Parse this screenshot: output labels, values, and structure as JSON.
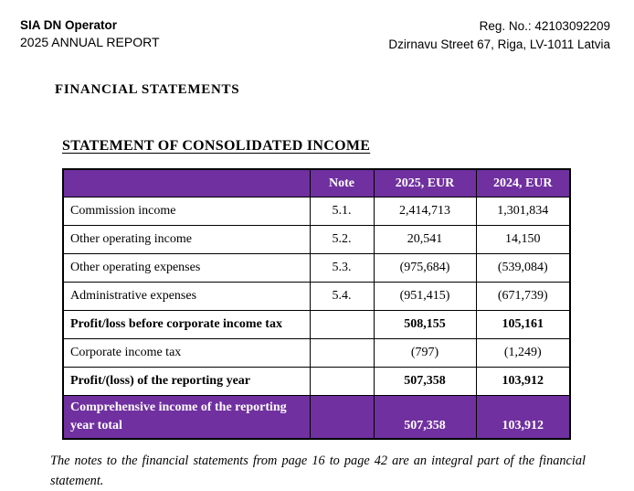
{
  "header": {
    "company": "SIA DN Operator",
    "report": "2025 ANNUAL REPORT",
    "reg_no": "Reg. No.: 42103092209",
    "address": "Dzirnavu Street 67, Riga, LV-1011 Latvia"
  },
  "section_title": "FINANCIAL STATEMENTS",
  "statement_title": "STATEMENT OF CONSOLIDATED INCOME",
  "table": {
    "columns": [
      "",
      "Note",
      "2025, EUR",
      "2024, EUR"
    ],
    "rows": [
      {
        "label": "Commission income",
        "note": "5.1.",
        "y2025": "2,414,713",
        "y2024": "1,301,834",
        "bold": false,
        "highlight": false
      },
      {
        "label": "Other operating income",
        "note": "5.2.",
        "y2025": "20,541",
        "y2024": "14,150",
        "bold": false,
        "highlight": false
      },
      {
        "label": "Other operating expenses",
        "note": "5.3.",
        "y2025": "(975,684)",
        "y2024": "(539,084)",
        "bold": false,
        "highlight": false
      },
      {
        "label": "Administrative expenses",
        "note": "5.4.",
        "y2025": "(951,415)",
        "y2024": "(671,739)",
        "bold": false,
        "highlight": false
      },
      {
        "label": "Profit/loss before corporate income tax",
        "note": "",
        "y2025": "508,155",
        "y2024": "105,161",
        "bold": true,
        "highlight": false
      },
      {
        "label": "Corporate income tax",
        "note": "",
        "y2025": "(797)",
        "y2024": "(1,249)",
        "bold": false,
        "highlight": false
      },
      {
        "label": "Profit/(loss) of the reporting year",
        "note": "",
        "y2025": "507,358",
        "y2024": "103,912",
        "bold": true,
        "highlight": false
      },
      {
        "label": "Comprehensive income of the reporting year total",
        "note": "",
        "y2025": "507,358",
        "y2024": "103,912",
        "bold": true,
        "highlight": true
      }
    ]
  },
  "footer_note": "The notes to the financial statements from page 16 to page 42 are an integral part of the financial statement.",
  "colors": {
    "accent_purple": "#7030A0",
    "table_header_text": "#FFFFFF",
    "border": "#000000",
    "text": "#000000"
  }
}
